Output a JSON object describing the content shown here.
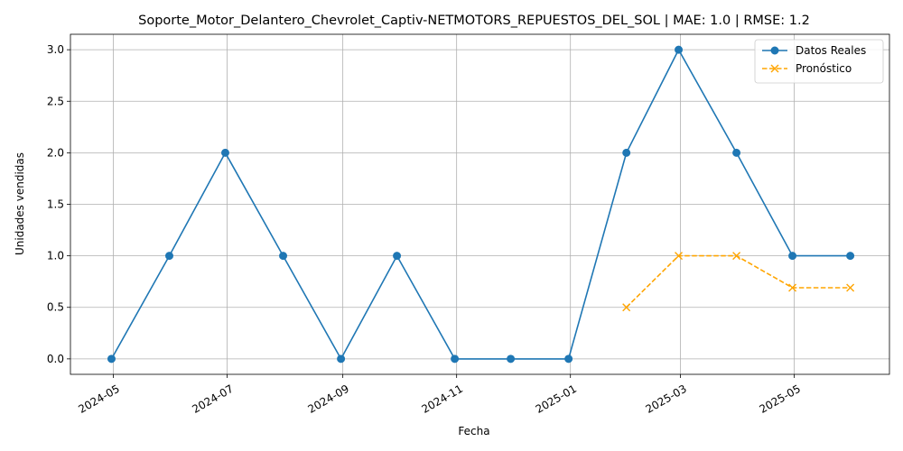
{
  "chart_data": {
    "type": "line",
    "title": "Soporte_Motor_Delantero_Chevrolet_Captiv-NETMOTORS_REPUESTOS_DEL_SOL | MAE: 1.0 | RMSE: 1.2",
    "xlabel": "Fecha",
    "ylabel": "Unidades vendidas",
    "ylim": [
      -0.15,
      3.15
    ],
    "xlim": [
      "2024-04-08",
      "2025-06-21"
    ],
    "grid": true,
    "legend_position": "top-right",
    "x_ticks": [
      {
        "date": "2024-05-01",
        "label": "2024-05"
      },
      {
        "date": "2024-07-01",
        "label": "2024-07"
      },
      {
        "date": "2024-09-01",
        "label": "2024-09"
      },
      {
        "date": "2024-11-01",
        "label": "2024-11"
      },
      {
        "date": "2025-01-01",
        "label": "2025-01"
      },
      {
        "date": "2025-03-01",
        "label": "2025-03"
      },
      {
        "date": "2025-05-01",
        "label": "2025-05"
      }
    ],
    "y_ticks": [
      {
        "value": 0,
        "label": "0.0"
      },
      {
        "value": 0.5,
        "label": "0.5"
      },
      {
        "value": 1,
        "label": "1.0"
      },
      {
        "value": 1.5,
        "label": "1.5"
      },
      {
        "value": 2,
        "label": "2.0"
      },
      {
        "value": 2.5,
        "label": "2.5"
      },
      {
        "value": 3,
        "label": "3.0"
      }
    ],
    "series": [
      {
        "name": "Datos Reales",
        "color": "#1f77b4",
        "style": "solid",
        "marker": "circle",
        "x": [
          "2024-04-30",
          "2024-05-31",
          "2024-06-30",
          "2024-07-31",
          "2024-08-31",
          "2024-09-30",
          "2024-10-31",
          "2024-11-30",
          "2024-12-31",
          "2025-01-31",
          "2025-02-28",
          "2025-03-31",
          "2025-04-30",
          "2025-05-31"
        ],
        "values": [
          0,
          1,
          2,
          1,
          0,
          1,
          0,
          0,
          0,
          2,
          3,
          2,
          1,
          1
        ]
      },
      {
        "name": "Pronóstico",
        "color": "#ffa500",
        "style": "dashed",
        "marker": "x",
        "x": [
          "2025-01-31",
          "2025-02-28",
          "2025-03-31",
          "2025-04-30",
          "2025-05-31"
        ],
        "values": [
          0.5,
          1.0,
          1.0,
          0.69,
          0.69
        ]
      }
    ]
  }
}
